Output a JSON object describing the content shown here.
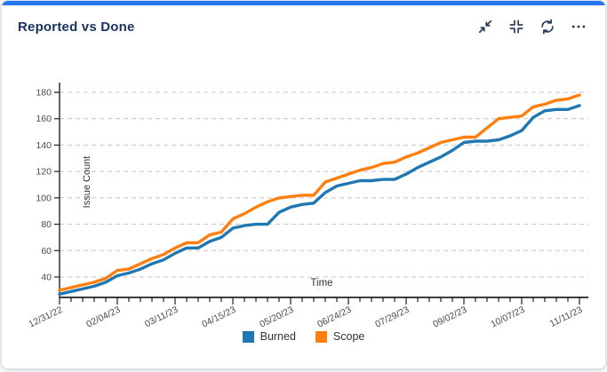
{
  "card": {
    "title": "Reported vs Done",
    "accent_color": "#2479f3",
    "toolbar": [
      {
        "name": "Collapse",
        "icon": "collapse-arrows-icon"
      },
      {
        "name": "Fit to size",
        "icon": "compress-corners-icon"
      },
      {
        "name": "Refresh",
        "icon": "refresh-icon"
      },
      {
        "name": "More options",
        "icon": "ellipsis-icon"
      }
    ]
  },
  "chart_data": {
    "type": "line",
    "title": "Reported vs Done",
    "xlabel": "Time",
    "ylabel": "Issue Count",
    "grid": "horizontal-dashed",
    "legend_position": "bottom",
    "yticks": [
      40,
      60,
      80,
      100,
      120,
      140,
      160,
      180
    ],
    "ylim": [
      25,
      187
    ],
    "x_major_tick_every": 5,
    "x": [
      "12/31/22",
      "01/07/23",
      "01/14/23",
      "01/21/23",
      "01/28/23",
      "02/04/23",
      "02/11/23",
      "02/18/23",
      "02/25/23",
      "03/04/23",
      "03/11/23",
      "03/18/23",
      "03/25/23",
      "04/01/23",
      "04/08/23",
      "04/15/23",
      "04/22/23",
      "04/29/23",
      "05/06/23",
      "05/13/23",
      "05/20/23",
      "05/27/23",
      "06/03/23",
      "06/10/23",
      "06/17/23",
      "06/24/23",
      "07/01/23",
      "07/08/23",
      "07/15/23",
      "07/22/23",
      "07/29/23",
      "08/05/23",
      "08/12/23",
      "08/19/23",
      "08/26/23",
      "09/02/23",
      "09/09/23",
      "09/16/23",
      "09/23/23",
      "09/30/23",
      "10/07/23",
      "10/14/23",
      "10/21/23",
      "10/28/23",
      "11/04/23",
      "11/11/23"
    ],
    "x_major_tick_labels": [
      "12/31/22",
      "02/04/23",
      "03/11/23",
      "04/15/23",
      "05/20/23",
      "06/24/23",
      "07/29/23",
      "09/02/23",
      "10/07/23",
      "11/11/23"
    ],
    "series": [
      {
        "name": "Burned",
        "color": "#1f77b4",
        "values": [
          27,
          29,
          31,
          33,
          36,
          41,
          43,
          46,
          50,
          53,
          58,
          62,
          62,
          67,
          70,
          77,
          79,
          80,
          80,
          89,
          93,
          95,
          96,
          104,
          109,
          111,
          113,
          113,
          114,
          114,
          118,
          123,
          127,
          131,
          136,
          142,
          143,
          143,
          144,
          147,
          151,
          161,
          166,
          167,
          167,
          170
        ]
      },
      {
        "name": "Scope",
        "color": "#ff7f0e",
        "values": [
          30,
          32,
          34,
          36,
          39,
          45,
          46,
          50,
          54,
          57,
          62,
          66,
          66,
          72,
          74,
          84,
          88,
          93,
          97,
          100,
          101,
          102,
          102,
          112,
          115,
          118,
          121,
          123,
          126,
          127,
          131,
          134,
          138,
          142,
          144,
          146,
          146,
          153,
          160,
          161,
          162,
          169,
          171,
          174,
          175,
          178
        ]
      }
    ],
    "axis_color": "#222222",
    "gridline_color": "#c4c4c4",
    "tick_label_color": "#4a4a4a"
  }
}
